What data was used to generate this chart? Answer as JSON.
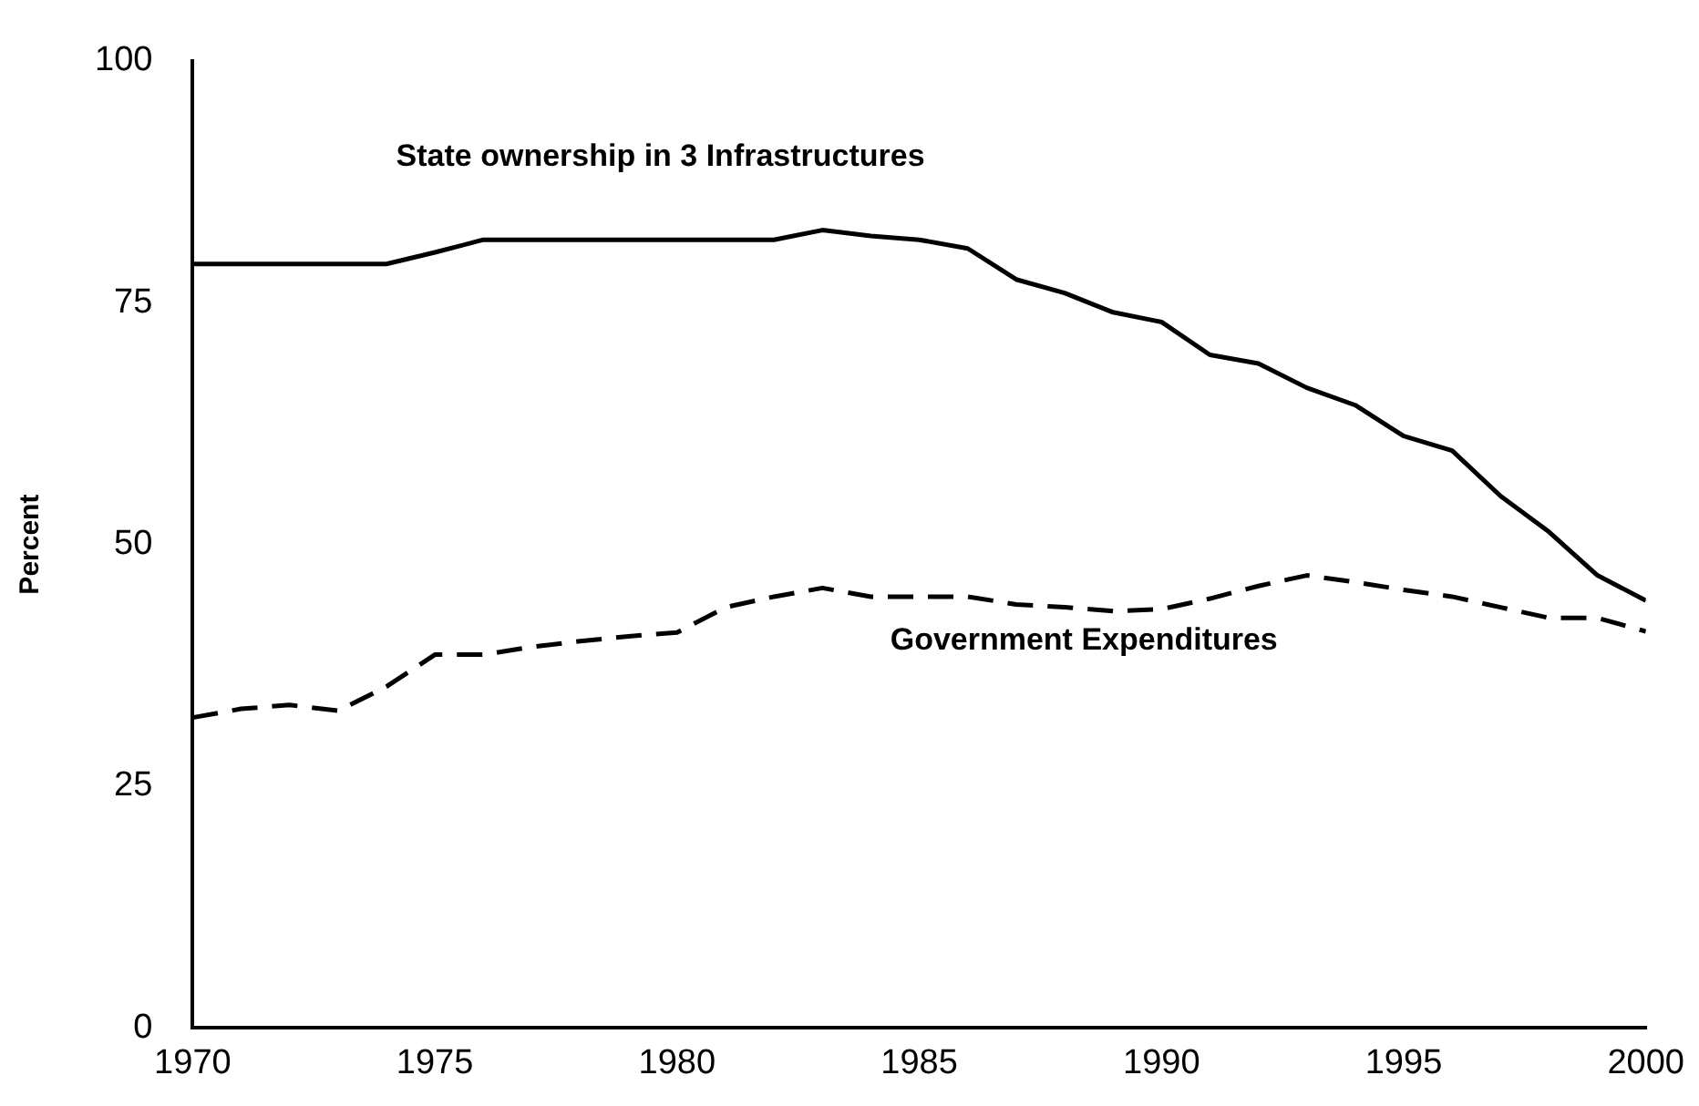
{
  "chart_data": {
    "type": "line",
    "ylabel": "Percent",
    "x": [
      1970,
      1971,
      1972,
      1973,
      1974,
      1975,
      1976,
      1977,
      1978,
      1979,
      1980,
      1981,
      1982,
      1983,
      1984,
      1985,
      1986,
      1987,
      1988,
      1989,
      1990,
      1991,
      1992,
      1993,
      1994,
      1995,
      1996,
      1997,
      1998,
      1999,
      2000
    ],
    "series": [
      {
        "name": "State ownership in 3 Infrastructures",
        "color": "#000000",
        "line_style": "solid",
        "values": [
          79,
          79,
          79,
          79,
          79,
          80.2,
          81.5,
          81.5,
          81.5,
          81.5,
          81.5,
          81.5,
          81.5,
          82.5,
          81.9,
          81.5,
          80.6,
          77.4,
          76,
          74,
          73,
          69.6,
          68.7,
          66.2,
          64.4,
          61.2,
          59.7,
          55,
          51.3,
          46.8,
          44.2
        ]
      },
      {
        "name": "Government Expenditures",
        "color": "#000000",
        "line_style": "dashed",
        "values": [
          32.1,
          33,
          33.4,
          32.8,
          35.3,
          38.6,
          38.6,
          39.4,
          40,
          40.5,
          40.9,
          43.5,
          44.6,
          45.5,
          44.6,
          44.6,
          44.6,
          43.8,
          43.5,
          43.1,
          43.3,
          44.4,
          45.7,
          46.8,
          46.1,
          45.3,
          44.6,
          43.5,
          42.4,
          42.4,
          41
        ]
      }
    ],
    "xlim": [
      1970,
      2000
    ],
    "xticks": [
      1970,
      1975,
      1980,
      1985,
      1990,
      1995,
      2000
    ],
    "ylim": [
      0,
      100
    ],
    "yticks": [
      0,
      25,
      50,
      75,
      100
    ],
    "grid": false,
    "legend": false
  }
}
